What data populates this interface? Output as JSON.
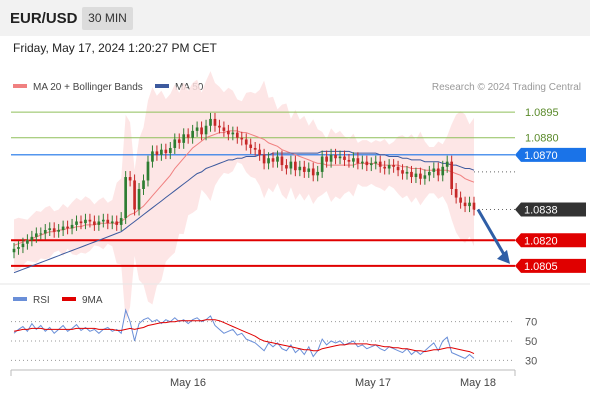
{
  "header": {
    "symbol": "EUR/USD",
    "timeframe": "30 MIN",
    "timestamp": "Friday, May 17, 2024 1:20:27 PM CET"
  },
  "legend": {
    "ma20_label": "MA 20 + Bollinger Bands",
    "ma50_label": "MA 50",
    "credit": "Research © 2024 Trading Central",
    "rsi_label": "RSI",
    "rsi_ma_label": "9MA"
  },
  "colors": {
    "ma20": "#f08080",
    "bands": "#fde2e2",
    "ma50": "#3d5a9e",
    "resistance": "#8fbf5a",
    "pivot": "#1a73e8",
    "support": "#e00000",
    "current": "#333333",
    "candle_up": "#2e7d32",
    "candle_down": "#c62828",
    "rsi": "#6a8fd8",
    "rsi_ma": "#e00000"
  },
  "chart_data": [
    {
      "type": "candlestick",
      "title": "",
      "x_ticks": [
        "May 16",
        "May 17",
        "May 18"
      ],
      "ylim": [
        1.0795,
        1.0905
      ],
      "levels": [
        {
          "label": "1.0895",
          "value": 1.0895,
          "kind": "resistance"
        },
        {
          "label": "1.0880",
          "value": 1.088,
          "kind": "resistance"
        },
        {
          "label": "1.0870",
          "value": 1.087,
          "kind": "pivot"
        },
        {
          "label": "1.0838",
          "value": 1.0838,
          "kind": "current"
        },
        {
          "label": "1.0820",
          "value": 1.082,
          "kind": "support"
        },
        {
          "label": "1.0805",
          "value": 1.0805,
          "kind": "support"
        }
      ],
      "close": [
        1.0815,
        1.0816,
        1.0818,
        1.082,
        1.0822,
        1.0824,
        1.0824,
        1.0826,
        1.0827,
        1.0825,
        1.0826,
        1.0828,
        1.0827,
        1.0829,
        1.0831,
        1.083,
        1.0832,
        1.0831,
        1.0829,
        1.0831,
        1.0832,
        1.083,
        1.0831,
        1.0829,
        1.0833,
        1.0857,
        1.0855,
        1.0838,
        1.085,
        1.0855,
        1.0866,
        1.0872,
        1.087,
        1.0873,
        1.0871,
        1.0874,
        1.0879,
        1.0877,
        1.0882,
        1.088,
        1.0884,
        1.0886,
        1.0882,
        1.0887,
        1.0891,
        1.0887,
        1.0886,
        1.0884,
        1.0882,
        1.0883,
        1.088,
        1.0879,
        1.0876,
        1.0874,
        1.0873,
        1.087,
        1.0865,
        1.0868,
        1.0866,
        1.0869,
        1.0864,
        1.0862,
        1.0866,
        1.0861,
        1.0863,
        1.086,
        1.0862,
        1.0858,
        1.086,
        1.0869,
        1.0866,
        1.087,
        1.0868,
        1.0869,
        1.0867,
        1.0866,
        1.0868,
        1.0865,
        1.0866,
        1.0864,
        1.0865,
        1.0866,
        1.0863,
        1.0862,
        1.0864,
        1.0863,
        1.0861,
        1.0859,
        1.086,
        1.0857,
        1.0859,
        1.0856,
        1.0858,
        1.086,
        1.0862,
        1.0858,
        1.0863,
        1.0866,
        1.085,
        1.0845,
        1.0842,
        1.084,
        1.0842,
        1.0838
      ],
      "ma20": [
        1.0817,
        1.0818,
        1.0819,
        1.082,
        1.0821,
        1.0822,
        1.0823,
        1.0824,
        1.0825,
        1.0825,
        1.0826,
        1.0826,
        1.0827,
        1.0827,
        1.0828,
        1.0828,
        1.0829,
        1.0829,
        1.0829,
        1.083,
        1.083,
        1.083,
        1.083,
        1.083,
        1.0831,
        1.0833,
        1.0835,
        1.0836,
        1.0838,
        1.084,
        1.0843,
        1.0846,
        1.0849,
        1.0852,
        1.0855,
        1.0858,
        1.0862,
        1.0865,
        1.0868,
        1.0871,
        1.0874,
        1.0876,
        1.0878,
        1.088,
        1.0881,
        1.0882,
        1.0883,
        1.0883,
        1.0884,
        1.0884,
        1.0884,
        1.0883,
        1.0883,
        1.0882,
        1.0881,
        1.088,
        1.0879,
        1.0877,
        1.0876,
        1.0875,
        1.0873,
        1.0872,
        1.0871,
        1.087,
        1.0869,
        1.0868,
        1.0867,
        1.0866,
        1.0865,
        1.0865,
        1.0864,
        1.0864,
        1.0864,
        1.0864,
        1.0864,
        1.0864,
        1.0864,
        1.0865,
        1.0865,
        1.0865,
        1.0865,
        1.0865,
        1.0864,
        1.0864,
        1.0864,
        1.0864,
        1.0864,
        1.0863,
        1.0863,
        1.0862,
        1.0862,
        1.0862,
        1.0861,
        1.0861,
        1.0861,
        1.0861,
        1.0861,
        1.0861,
        1.086,
        1.0859,
        1.0858,
        1.0856,
        1.0855,
        1.0854
      ],
      "ma50": [
        1.0801,
        1.0802,
        1.0803,
        1.0804,
        1.0805,
        1.0806,
        1.0807,
        1.0808,
        1.0809,
        1.081,
        1.0811,
        1.0812,
        1.0813,
        1.0814,
        1.0815,
        1.0816,
        1.0817,
        1.0818,
        1.0819,
        1.082,
        1.0821,
        1.0822,
        1.0823,
        1.0824,
        1.0825,
        1.0827,
        1.0829,
        1.0831,
        1.0833,
        1.0835,
        1.0837,
        1.0839,
        1.0841,
        1.0843,
        1.0845,
        1.0847,
        1.0849,
        1.0851,
        1.0853,
        1.0855,
        1.0857,
        1.0859,
        1.086,
        1.0862,
        1.0863,
        1.0864,
        1.0865,
        1.0866,
        1.0867,
        1.0867,
        1.0868,
        1.0868,
        1.0869,
        1.0869,
        1.0869,
        1.087,
        1.087,
        1.087,
        1.0871,
        1.0871,
        1.0871,
        1.0871,
        1.0871,
        1.0871,
        1.0871,
        1.0871,
        1.0871,
        1.0871,
        1.0871,
        1.0872,
        1.0872,
        1.0872,
        1.0872,
        1.0872,
        1.0872,
        1.0872,
        1.0871,
        1.0871,
        1.0871,
        1.0871,
        1.0871,
        1.0871,
        1.087,
        1.087,
        1.0869,
        1.0869,
        1.0869,
        1.0868,
        1.0868,
        1.0867,
        1.0867,
        1.0867,
        1.0866,
        1.0866,
        1.0866,
        1.0866,
        1.0865,
        1.0865,
        1.0864,
        1.0864,
        1.0863,
        1.0862,
        1.0862,
        1.0861
      ],
      "forecast": {
        "from": 1.0838,
        "to": 1.0805
      }
    },
    {
      "type": "line",
      "series": [
        {
          "name": "RSI"
        },
        {
          "name": "9MA"
        }
      ],
      "y_ticks": [
        70,
        50,
        30
      ],
      "ylim": [
        20,
        80
      ],
      "rsi": [
        58,
        62,
        65,
        60,
        68,
        62,
        66,
        60,
        64,
        58,
        62,
        66,
        60,
        63,
        67,
        61,
        64,
        60,
        62,
        58,
        62,
        64,
        60,
        62,
        58,
        82,
        70,
        50,
        68,
        72,
        74,
        70,
        72,
        68,
        72,
        70,
        74,
        70,
        72,
        68,
        72,
        74,
        70,
        72,
        76,
        66,
        62,
        58,
        60,
        62,
        56,
        58,
        52,
        50,
        48,
        44,
        40,
        48,
        44,
        48,
        42,
        40,
        46,
        38,
        42,
        36,
        44,
        34,
        40,
        52,
        46,
        50,
        48,
        50,
        46,
        48,
        50,
        44,
        46,
        42,
        44,
        46,
        42,
        40,
        44,
        42,
        40,
        38,
        42,
        36,
        40,
        36,
        40,
        44,
        48,
        40,
        50,
        54,
        38,
        36,
        34,
        32,
        36,
        32
      ],
      "rsi_ma": [
        60,
        61,
        62,
        62,
        63,
        63,
        63,
        62,
        62,
        62,
        62,
        62,
        62,
        62,
        63,
        63,
        63,
        63,
        63,
        62,
        62,
        62,
        62,
        61,
        61,
        62,
        63,
        62,
        63,
        64,
        66,
        67,
        68,
        69,
        69,
        70,
        70,
        71,
        71,
        71,
        71,
        71,
        71,
        72,
        72,
        72,
        71,
        69,
        67,
        65,
        63,
        61,
        59,
        57,
        55,
        52,
        50,
        49,
        48,
        47,
        46,
        45,
        44,
        43,
        42,
        41,
        41,
        40,
        40,
        42,
        43,
        44,
        45,
        46,
        46,
        47,
        47,
        47,
        47,
        47,
        46,
        46,
        45,
        44,
        44,
        43,
        43,
        42,
        42,
        41,
        40,
        40,
        39,
        40,
        41,
        41,
        42,
        43,
        43,
        42,
        41,
        40,
        39,
        37
      ]
    }
  ]
}
